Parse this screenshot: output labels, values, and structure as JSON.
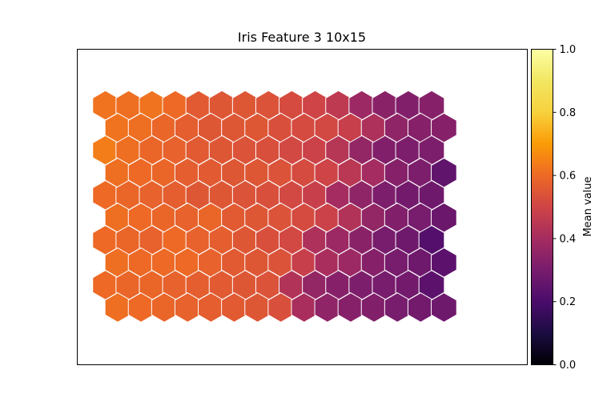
{
  "chart_data": {
    "type": "heatmap",
    "subtype": "hexagonal-som",
    "title": "Iris Feature 3 10x15",
    "grid": {
      "rows": 10,
      "cols": 15
    },
    "colormap": "inferno",
    "hex_edge_color": "#ffffff",
    "colorbar": {
      "label": "Mean value",
      "range": [
        0.0,
        1.0
      ],
      "ticks": [
        "0.0",
        "0.2",
        "0.4",
        "0.6",
        "0.8",
        "1.0"
      ]
    },
    "values": [
      [
        0.62,
        0.61,
        0.62,
        0.6,
        0.56,
        0.55,
        0.55,
        0.54,
        0.52,
        0.5,
        0.46,
        0.38,
        0.34,
        0.32,
        0.33
      ],
      [
        0.62,
        0.61,
        0.59,
        0.57,
        0.55,
        0.55,
        0.55,
        0.53,
        0.52,
        0.51,
        0.48,
        0.42,
        0.35,
        0.33,
        0.33
      ],
      [
        0.64,
        0.61,
        0.59,
        0.58,
        0.56,
        0.55,
        0.54,
        0.53,
        0.51,
        0.49,
        0.44,
        0.36,
        0.32,
        0.31,
        0.31
      ],
      [
        0.61,
        0.6,
        0.59,
        0.57,
        0.56,
        0.55,
        0.55,
        0.54,
        0.52,
        0.5,
        0.45,
        0.4,
        0.33,
        0.31,
        0.25
      ],
      [
        0.6,
        0.59,
        0.58,
        0.57,
        0.55,
        0.55,
        0.54,
        0.53,
        0.51,
        0.48,
        0.4,
        0.35,
        0.31,
        0.29,
        0.28
      ],
      [
        0.61,
        0.6,
        0.59,
        0.58,
        0.59,
        0.56,
        0.55,
        0.54,
        0.52,
        0.49,
        0.43,
        0.36,
        0.32,
        0.3,
        0.27
      ],
      [
        0.6,
        0.59,
        0.58,
        0.6,
        0.58,
        0.57,
        0.55,
        0.53,
        0.51,
        0.42,
        0.38,
        0.34,
        0.3,
        0.28,
        0.22
      ],
      [
        0.61,
        0.6,
        0.6,
        0.6,
        0.58,
        0.56,
        0.55,
        0.54,
        0.48,
        0.41,
        0.38,
        0.33,
        0.3,
        0.28,
        0.24
      ],
      [
        0.6,
        0.59,
        0.59,
        0.58,
        0.57,
        0.56,
        0.55,
        0.54,
        0.43,
        0.36,
        0.33,
        0.31,
        0.3,
        0.29,
        0.24
      ],
      [
        0.61,
        0.6,
        0.59,
        0.58,
        0.57,
        0.56,
        0.55,
        0.53,
        0.41,
        0.35,
        0.33,
        0.32,
        0.3,
        0.29,
        0.28
      ]
    ]
  }
}
